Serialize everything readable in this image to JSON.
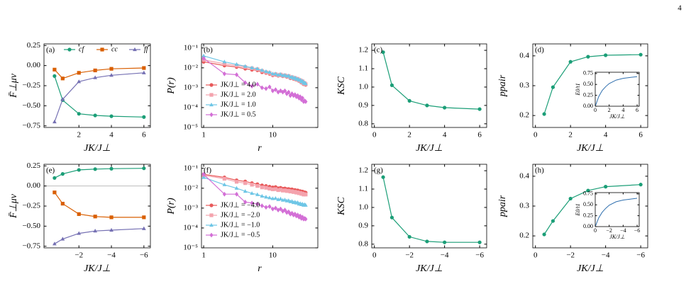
{
  "page_number": 4,
  "chart_data": [
    {
      "type": "line",
      "title": "(a)",
      "xlabel": "JK/J⊥",
      "ylabel": "F̄⊥μν",
      "legend": "upper center",
      "x": [
        0.5,
        1,
        2,
        3,
        4,
        6
      ],
      "xlim": [
        -0.15,
        6.4
      ],
      "xticks": [
        2,
        4,
        6
      ],
      "ylim": [
        -0.77,
        0.27
      ],
      "yticks": [
        0.25,
        {
          "value": 0,
          "label": "0.00"
        },
        {
          "value": -0.25,
          "label": "−0.25"
        },
        {
          "value": -0.5,
          "label": "−0.50"
        },
        {
          "value": -0.75,
          "label": "−0.75"
        }
      ],
      "series": [
        {
          "name": "cf",
          "color": "#1b9e77",
          "marker": "circle",
          "values": [
            -0.13,
            -0.43,
            -0.6,
            -0.62,
            -0.63,
            -0.64
          ]
        },
        {
          "name": "cc",
          "color": "#d95f02",
          "marker": "square",
          "values": [
            -0.05,
            -0.16,
            -0.09,
            -0.06,
            -0.04,
            -0.03
          ]
        },
        {
          "name": "ff",
          "color": "#7570b3",
          "marker": "triangle",
          "values": [
            -0.7,
            -0.42,
            -0.2,
            -0.15,
            -0.12,
            -0.09
          ]
        }
      ]
    },
    {
      "type": "line",
      "title": "(b)",
      "xlabel": "r",
      "ylabel": "P(r)",
      "legend": "lower left",
      "xscale": "log",
      "yscale": "log",
      "x": [
        1,
        2,
        3,
        4,
        5,
        6,
        7,
        8,
        9,
        10,
        11,
        12,
        13,
        14,
        15,
        16,
        17,
        18,
        19,
        20,
        21,
        22,
        23,
        24,
        25,
        26,
        27,
        28,
        29,
        30
      ],
      "xlim": [
        0.93,
        45
      ],
      "xticks": [
        1,
        10
      ],
      "ylim": [
        1e-05,
        0.16
      ],
      "yticks": [
        {
          "value": 0.1,
          "label": "10⁻¹"
        },
        {
          "value": 0.01,
          "label": "10⁻²"
        },
        {
          "value": 0.001,
          "label": "10⁻³"
        },
        {
          "value": 0.0001,
          "label": "10⁻⁴"
        },
        {
          "value": 1e-05,
          "label": "10⁻⁵"
        }
      ],
      "series": [
        {
          "name": "JK/J⊥ = 4.0",
          "color": "#e8595a",
          "marker": "circle",
          "values": [
            0.02,
            0.013,
            0.011,
            0.009,
            0.008,
            0.0075,
            0.006,
            0.0055,
            0.005,
            0.0042,
            0.0045,
            0.004,
            0.0043,
            0.0038,
            0.004,
            0.0035,
            0.0037,
            0.003,
            0.0032,
            0.0028,
            0.003,
            0.0025,
            0.0026,
            0.0022,
            0.0023,
            0.0018,
            0.002,
            0.0015,
            0.0016,
            0.0014
          ]
        },
        {
          "name": "JK/J⊥ = 2.0",
          "color": "#f4a3ad",
          "marker": "square",
          "values": [
            0.025,
            0.016,
            0.013,
            0.011,
            0.0095,
            0.0085,
            0.007,
            0.006,
            0.0055,
            0.0045,
            0.0048,
            0.0042,
            0.0046,
            0.004,
            0.0042,
            0.0037,
            0.0039,
            0.0032,
            0.0034,
            0.003,
            0.0031,
            0.0026,
            0.0028,
            0.0023,
            0.0024,
            0.0019,
            0.0021,
            0.0016,
            0.0017,
            0.0015
          ]
        },
        {
          "name": "JK/J⊥ = 1.0",
          "color": "#6ec6e6",
          "marker": "triangle",
          "values": [
            0.04,
            0.02,
            0.015,
            0.012,
            0.01,
            0.009,
            0.0075,
            0.0065,
            0.006,
            0.005,
            0.005,
            0.0044,
            0.0047,
            0.0041,
            0.0043,
            0.0038,
            0.004,
            0.0033,
            0.0035,
            0.003,
            0.0032,
            0.0027,
            0.0028,
            0.0024,
            0.0025,
            0.002,
            0.0022,
            0.0017,
            0.0018,
            0.0016
          ]
        },
        {
          "name": "JK/J⊥ = 0.5",
          "color": "#d36fd6",
          "marker": "diamond",
          "values": [
            0.03,
            0.005,
            0.0045,
            0.0018,
            0.0012,
            0.0015,
            0.001,
            0.0009,
            0.0011,
            0.0007,
            0.0008,
            0.0006,
            0.0007,
            0.0006,
            0.0007,
            0.0005,
            0.0006,
            0.0004,
            0.0005,
            0.0004,
            0.00045,
            0.00035,
            0.0004,
            0.0003,
            0.00035,
            0.00025,
            0.0003,
            0.0002,
            0.00022,
            0.0002
          ]
        }
      ]
    },
    {
      "type": "line",
      "title": "(c)",
      "xlabel": "JK/J⊥",
      "ylabel": "KSC",
      "x": [
        0.5,
        1,
        2,
        3,
        4,
        6
      ],
      "xlim": [
        -0.15,
        6.4
      ],
      "xticks": [
        0,
        2,
        4,
        6
      ],
      "ylim": [
        0.78,
        1.235
      ],
      "yticks": [
        {
          "value": 0.8,
          "label": "0.8"
        },
        {
          "value": 0.9,
          "label": "0.9"
        },
        {
          "value": 1,
          "label": "1.0"
        },
        1.1,
        1.2
      ],
      "color": "#1b9e77",
      "marker": "circle",
      "values": [
        1.19,
        1.01,
        0.925,
        0.9,
        0.888,
        0.88
      ]
    },
    {
      "type": "line",
      "title": "(d)",
      "xlabel": "JK/J⊥",
      "ylabel": "ppair",
      "x": [
        0.5,
        1,
        2,
        3,
        4,
        6
      ],
      "xlim": [
        -0.15,
        6.4
      ],
      "xticks": [
        0,
        2,
        4,
        6
      ],
      "ylim": [
        0.16,
        0.44
      ],
      "yticks": [
        0.2,
        0.3,
        0.4
      ],
      "color": "#1b9e77",
      "marker": "circle",
      "values": [
        0.205,
        0.295,
        0.38,
        0.397,
        0.402,
        0.404
      ],
      "inset": {
        "type": "line",
        "xlabel": "JK/J⊥",
        "ylabel": "E0/t1",
        "x": [
          0.05,
          0.5,
          1,
          1.5,
          2,
          3,
          4,
          5,
          6
        ],
        "xlim": [
          0,
          6.3
        ],
        "xticks": [
          0,
          2,
          4,
          6
        ],
        "ylim": [
          0,
          0.78
        ],
        "yticks": [
          {
            "value": 0,
            "label": "0.00"
          },
          0.25,
          {
            "value": 0.5,
            "label": "0.50"
          },
          0.75
        ],
        "color": "#2f6fae",
        "values": [
          0.02,
          0.22,
          0.36,
          0.45,
          0.52,
          0.6,
          0.64,
          0.66,
          0.68
        ]
      }
    },
    {
      "type": "line",
      "title": "(e)",
      "xlabel": "JK/J⊥",
      "ylabel": "F̄⊥μν",
      "hline": 0,
      "x": [
        -0.5,
        -1,
        -2,
        -3,
        -4,
        -6
      ],
      "xlim": [
        0.15,
        -6.4
      ],
      "xticks": [
        {
          "value": -2,
          "label": "−2"
        },
        {
          "value": -4,
          "label": "−4"
        },
        {
          "value": -6,
          "label": "−6"
        }
      ],
      "ylim": [
        -0.77,
        0.27
      ],
      "yticks": [
        0.25,
        {
          "value": 0,
          "label": "0.00"
        },
        {
          "value": -0.25,
          "label": "−0.25"
        },
        {
          "value": -0.5,
          "label": "−0.50"
        },
        {
          "value": -0.75,
          "label": "−0.75"
        }
      ],
      "series": [
        {
          "color": "#1b9e77",
          "marker": "circle",
          "values": [
            0.1,
            0.15,
            0.2,
            0.21,
            0.215,
            0.22
          ]
        },
        {
          "color": "#d95f02",
          "marker": "square",
          "values": [
            -0.08,
            -0.22,
            -0.35,
            -0.38,
            -0.39,
            -0.39
          ]
        },
        {
          "color": "#7570b3",
          "marker": "triangle",
          "values": [
            -0.72,
            -0.66,
            -0.59,
            -0.56,
            -0.55,
            -0.53
          ]
        }
      ]
    },
    {
      "type": "line",
      "title": "(f)",
      "xlabel": "r",
      "ylabel": "P(r)",
      "legend": "lower left",
      "xscale": "log",
      "yscale": "log",
      "x": [
        1,
        2,
        3,
        4,
        5,
        6,
        7,
        8,
        9,
        10,
        11,
        12,
        13,
        14,
        15,
        16,
        17,
        18,
        19,
        20,
        21,
        22,
        23,
        24,
        25,
        26,
        27,
        28,
        29,
        30
      ],
      "xlim": [
        0.93,
        45
      ],
      "xticks": [
        1,
        10
      ],
      "ylim": [
        1e-05,
        0.16
      ],
      "yticks": [
        {
          "value": 0.1,
          "label": "10⁻¹"
        },
        {
          "value": 0.01,
          "label": "10⁻²"
        },
        {
          "value": 0.001,
          "label": "10⁻³"
        },
        {
          "value": 0.0001,
          "label": "10⁻⁴"
        },
        {
          "value": 1e-05,
          "label": "10⁻⁵"
        }
      ],
      "series": [
        {
          "name": "JK/J⊥ = −4.0",
          "color": "#e8595a",
          "marker": "circle",
          "values": [
            0.05,
            0.035,
            0.025,
            0.022,
            0.018,
            0.016,
            0.014,
            0.013,
            0.012,
            0.011,
            0.0115,
            0.01,
            0.0105,
            0.0095,
            0.0098,
            0.009,
            0.0092,
            0.0085,
            0.0088,
            0.008,
            0.0082,
            0.0075,
            0.0078,
            0.007,
            0.0072,
            0.0065,
            0.0068,
            0.006,
            0.0062,
            0.006
          ]
        },
        {
          "name": "JK/J⊥ = −2.0",
          "color": "#f4a3ad",
          "marker": "square",
          "values": [
            0.045,
            0.03,
            0.021,
            0.018,
            0.015,
            0.013,
            0.011,
            0.0105,
            0.0095,
            0.0088,
            0.009,
            0.008,
            0.0084,
            0.0076,
            0.0078,
            0.0072,
            0.0074,
            0.0068,
            0.007,
            0.0064,
            0.0066,
            0.006,
            0.0062,
            0.0056,
            0.0058,
            0.0052,
            0.0054,
            0.0048,
            0.005,
            0.0048
          ]
        },
        {
          "name": "JK/J⊥ = −1.0",
          "color": "#6ec6e6",
          "marker": "triangle",
          "values": [
            0.035,
            0.015,
            0.01,
            0.007,
            0.0055,
            0.0048,
            0.004,
            0.0036,
            0.0033,
            0.003,
            0.0031,
            0.0027,
            0.0029,
            0.0025,
            0.0026,
            0.0023,
            0.0024,
            0.0021,
            0.0022,
            0.0019,
            0.002,
            0.0018,
            0.0019,
            0.0016,
            0.0017,
            0.0015,
            0.0016,
            0.0014,
            0.0015,
            0.0014
          ]
        },
        {
          "name": "JK/J⊥ = −0.5",
          "color": "#d36fd6",
          "marker": "diamond",
          "values": [
            0.05,
            0.005,
            0.005,
            0.002,
            0.0018,
            0.0016,
            0.0013,
            0.0011,
            0.0012,
            0.0009,
            0.001,
            0.0008,
            0.0009,
            0.0007,
            0.0008,
            0.0006,
            0.00065,
            0.0005,
            0.00055,
            0.00045,
            0.0005,
            0.0004,
            0.00045,
            0.00035,
            0.0004,
            0.0003,
            0.00035,
            0.00028,
            0.0003,
            0.00028
          ]
        }
      ]
    },
    {
      "type": "line",
      "title": "(g)",
      "xlabel": "JK/J⊥",
      "ylabel": "KSC",
      "x": [
        -0.5,
        -1,
        -2,
        -3,
        -4,
        -6
      ],
      "xlim": [
        0.15,
        -6.4
      ],
      "xticks": [
        0,
        {
          "value": -2,
          "label": "−2"
        },
        {
          "value": -4,
          "label": "−4"
        },
        {
          "value": -6,
          "label": "−6"
        }
      ],
      "ylim": [
        0.78,
        1.235
      ],
      "yticks": [
        {
          "value": 0.8,
          "label": "0.8"
        },
        {
          "value": 0.9,
          "label": "0.9"
        },
        {
          "value": 1,
          "label": "1.0"
        },
        1.1,
        1.2
      ],
      "color": "#1b9e77",
      "marker": "circle",
      "values": [
        1.165,
        0.945,
        0.84,
        0.815,
        0.81,
        0.81
      ]
    },
    {
      "type": "line",
      "title": "(h)",
      "xlabel": "JK/J⊥",
      "ylabel": "ppair",
      "x": [
        -0.5,
        -1,
        -2,
        -3,
        -4,
        -6
      ],
      "xlim": [
        0.15,
        -6.4
      ],
      "xticks": [
        0,
        {
          "value": -2,
          "label": "−2"
        },
        {
          "value": -4,
          "label": "−4"
        },
        {
          "value": -6,
          "label": "−6"
        }
      ],
      "ylim": [
        0.16,
        0.44
      ],
      "yticks": [
        0.2,
        0.3,
        0.4
      ],
      "color": "#1b9e77",
      "marker": "circle",
      "values": [
        0.205,
        0.25,
        0.325,
        0.352,
        0.365,
        0.372
      ],
      "inset": {
        "type": "line",
        "xlabel": "JK/J⊥",
        "ylabel": "E0/t1",
        "x": [
          -0.05,
          -0.5,
          -1,
          -1.5,
          -2,
          -3,
          -4,
          -5,
          -6
        ],
        "xlim": [
          0,
          -6.3
        ],
        "xticks": [
          0,
          {
            "value": -2,
            "label": "−2"
          },
          {
            "value": -4,
            "label": "−4"
          },
          {
            "value": -6,
            "label": "−6"
          }
        ],
        "ylim": [
          0,
          0.78
        ],
        "yticks": [
          {
            "value": 0,
            "label": "0.00"
          },
          0.25,
          {
            "value": 0.5,
            "label": "0.50"
          },
          0.75
        ],
        "color": "#2f6fae",
        "values": [
          0.02,
          0.2,
          0.33,
          0.42,
          0.49,
          0.57,
          0.61,
          0.63,
          0.65
        ]
      }
    }
  ]
}
